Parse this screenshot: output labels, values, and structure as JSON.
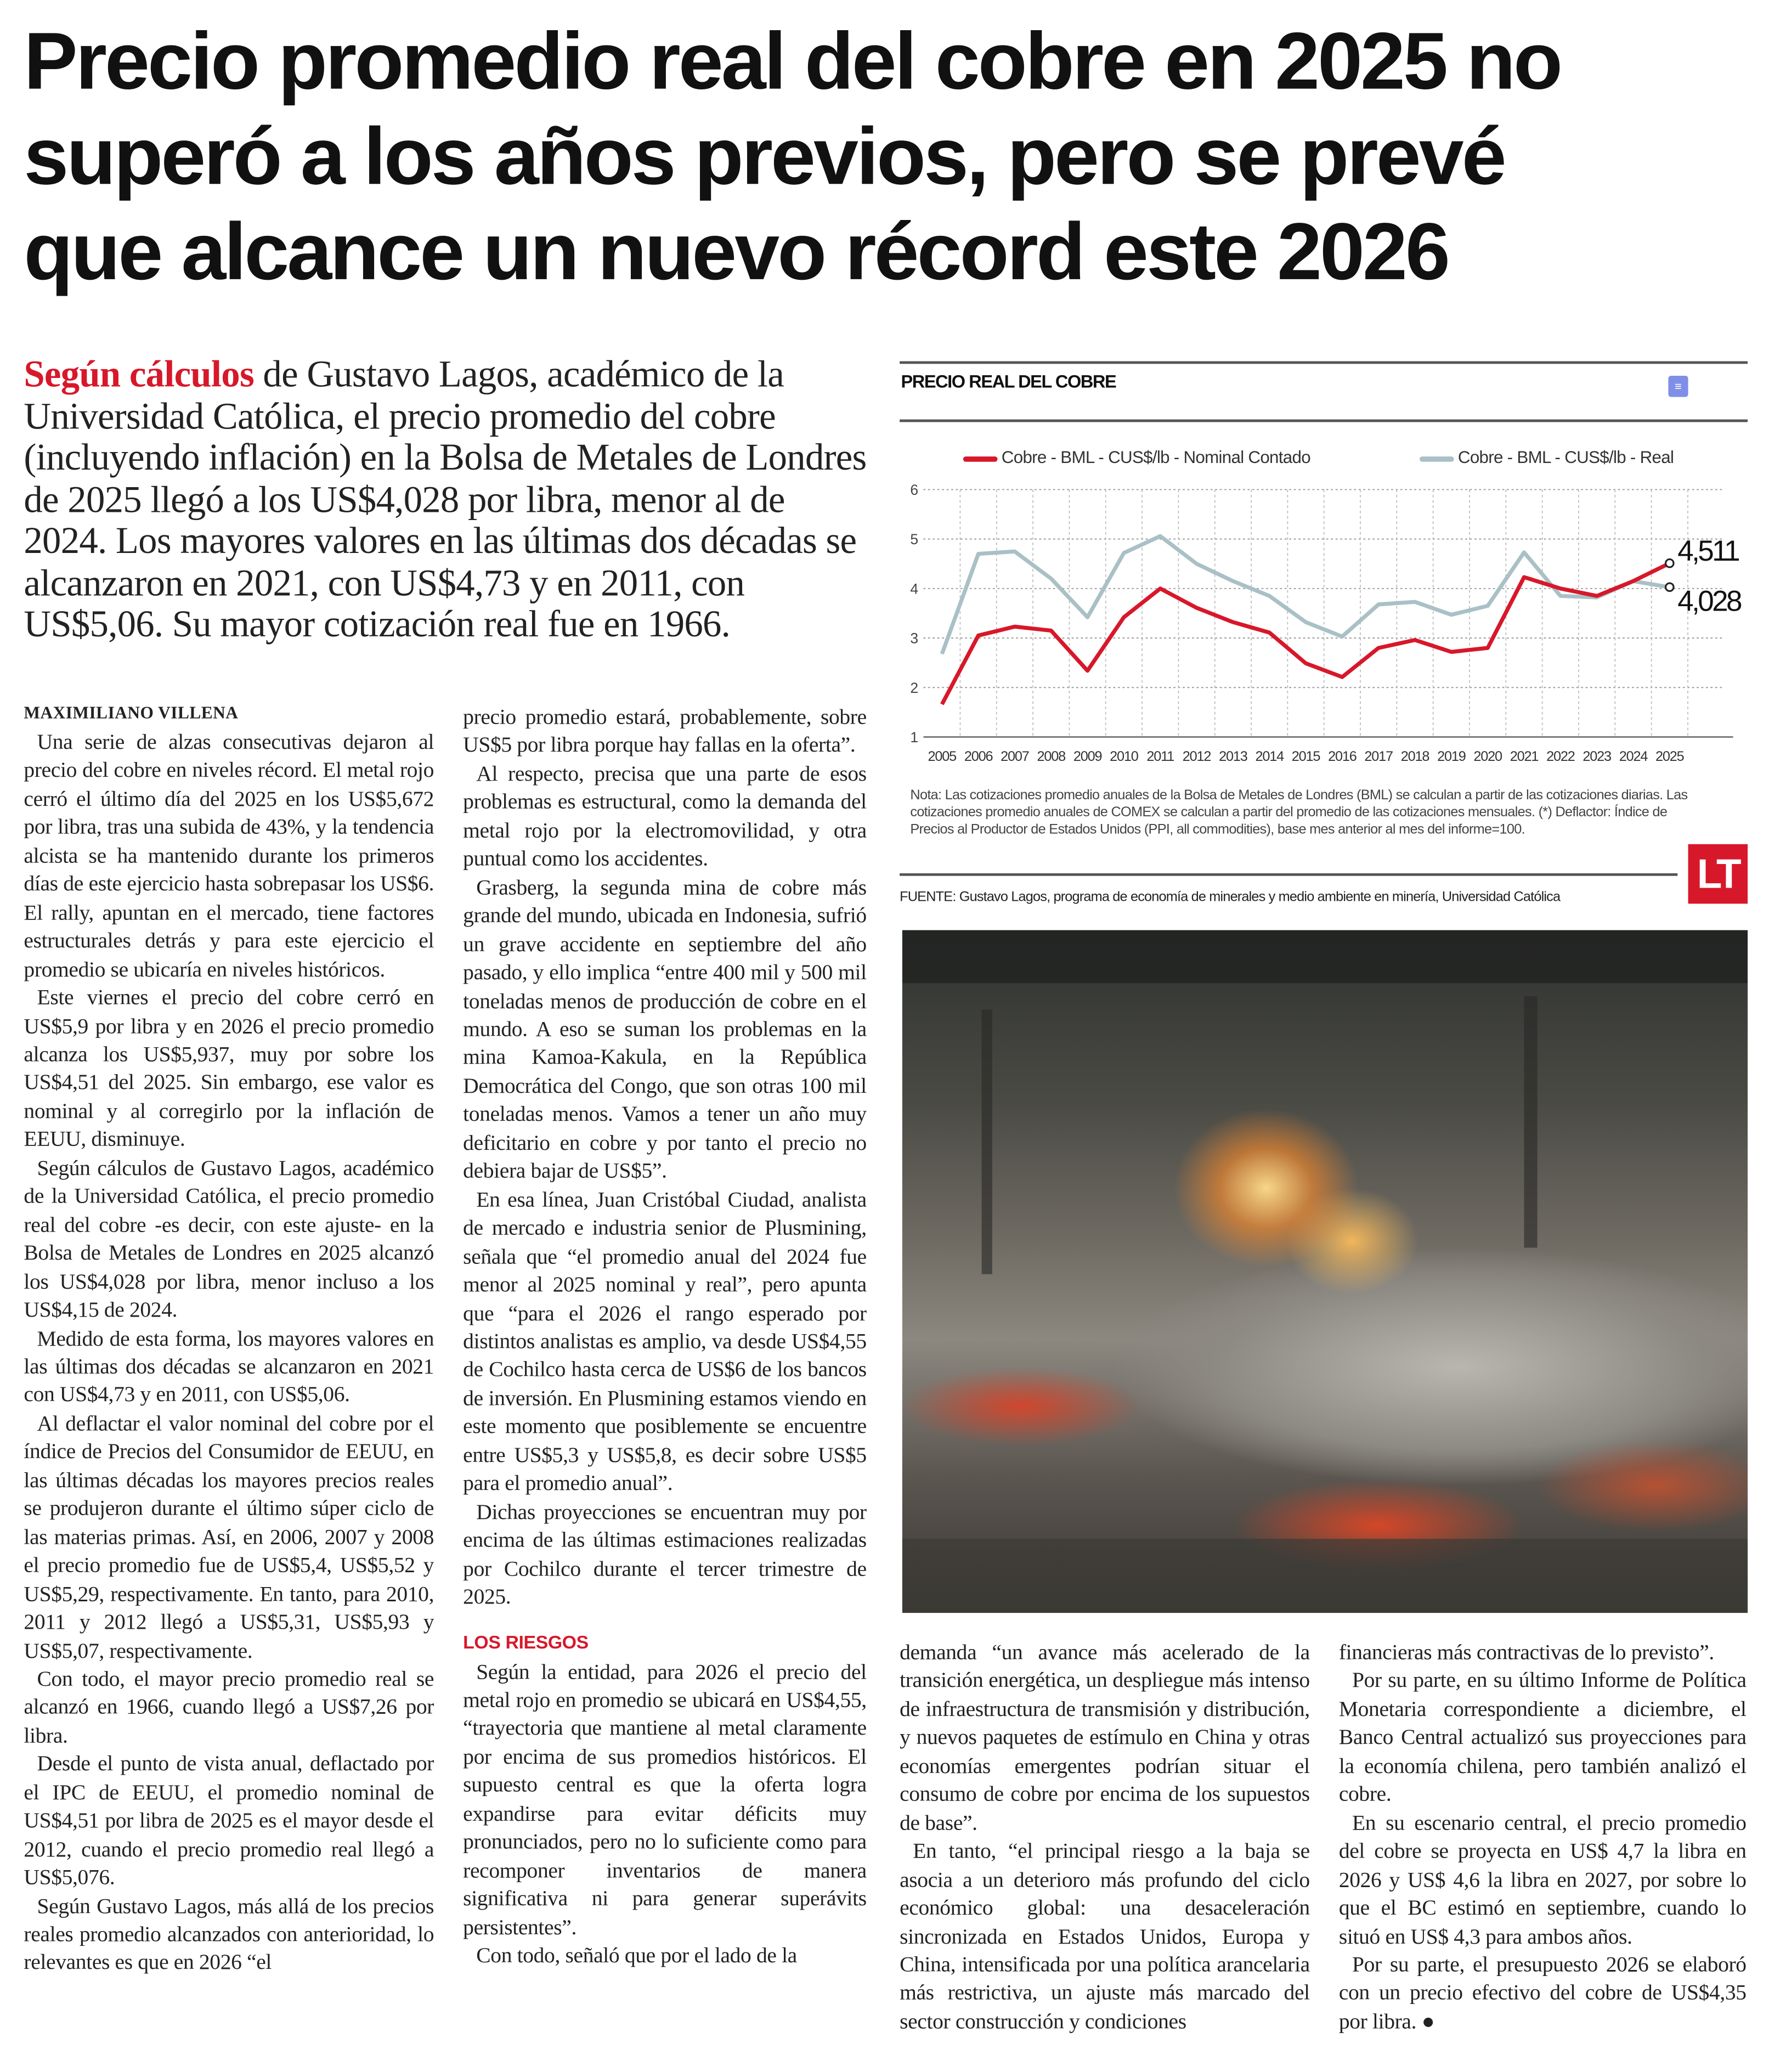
{
  "headline": {
    "lines": [
      "Precio promedio real del cobre en 2025 no",
      "superó a los años previos, pero se prevé",
      "que alcance un nuevo récord este 2026"
    ]
  },
  "lead": {
    "highlight": "Según cálculos",
    "text": " de Gustavo Lagos, académico de la Universidad Católica, el precio promedio del cobre (incluyendo inflación) en la Bolsa de Metales de Londres de 2025 llegó a los US$4,028 por libra, menor al de 2024. Los mayores valores en las últimas dos décadas se alcanzaron en 2021, con US$4,73 y en 2011, con US$5,06. Su mayor cotización real fue en 1966."
  },
  "col1": {
    "byline": "MAXIMILIANO VILLENA",
    "paragraphs": [
      "Una serie de alzas consecutivas dejaron al precio del cobre en niveles récord. El metal rojo cerró el último día del 2025 en los US$5,672 por libra, tras una subida de 43%, y la tendencia alcista se ha mantenido durante los primeros días de este ejercicio hasta sobrepasar los US$6. El rally, apuntan en el mercado, tiene factores estructurales detrás y para este ejercicio el promedio se ubicaría en niveles históricos.",
      "Este viernes el precio del cobre cerró en US$5,9 por libra y en 2026 el precio promedio alcanza los US$5,937, muy por sobre los US$4,51 del 2025. Sin embargo, ese valor es nominal y al corregirlo por la inflación de EEUU, disminuye.",
      "Según cálculos de Gustavo Lagos, académico de la Universidad Católica, el precio promedio real del cobre -es decir, con este ajuste- en la Bolsa de Metales de Londres en 2025 alcanzó los US$4,028 por libra, menor incluso a los US$4,15 de 2024.",
      "Medido de esta forma, los mayores valores en las últimas dos décadas se alcanzaron en 2021 con US$4,73 y en 2011, con US$5,06.",
      "Al deflactar el valor nominal del cobre por el índice de Precios del Consumidor de EEUU, en las últimas décadas los mayores precios reales se produjeron durante el último súper ciclo de las materias primas. Así, en 2006, 2007 y 2008 el precio promedio fue de US$5,4, US$5,52 y US$5,29, respectivamente. En tanto, para 2010, 2011 y 2012 llegó a US$5,31, US$5,93 y US$5,07, respectivamente.",
      "Con todo, el mayor precio promedio real se alcanzó en 1966, cuando llegó a US$7,26 por libra.",
      "Desde el punto de vista anual, deflactado por el IPC de EEUU, el promedio nominal de US$4,51 por libra de 2025 es el mayor desde el 2012, cuando el precio promedio real llegó a US$5,076.",
      "Según Gustavo Lagos, más allá de los precios reales promedio alcanzados con anterioridad, lo relevantes es que en 2026 “el"
    ]
  },
  "col2": {
    "paragraphs": [
      "precio promedio estará, probablemente, sobre US$5 por libra porque hay fallas en la oferta”.",
      "Al respecto, precisa que una parte de esos problemas es estructural, como la demanda del metal rojo por la electromovilidad, y otra puntual como los accidentes.",
      "Grasberg, la segunda mina de cobre más grande del mundo, ubicada en Indonesia, sufrió un grave accidente en septiembre del año pasado, y ello implica “entre 400 mil y 500 mil toneladas menos de producción de cobre en el mundo. A eso se suman los problemas en la mina Kamoa-Kakula, en la República Democrática del Congo, que son otras 100 mil toneladas menos. Vamos a tener un año muy deficitario en cobre y por tanto el precio no debiera bajar de US$5”.",
      "En esa línea, Juan Cristóbal Ciudad, analista de mercado e industria senior de Plusmining, señala que “el promedio anual del 2024 fue menor al 2025 nominal y real”, pero apunta que “para el 2026 el rango esperado por distintos analistas es amplio, va desde US$4,55 de Cochilco hasta cerca de US$6 de los bancos de inversión. En Plusmining estamos viendo en este momento que posiblemente se encuentre entre US$5,3 y US$5,8, es decir sobre US$5 para el promedio anual”.",
      "Dichas proyecciones se encuentran muy por encima de las últimas estimaciones realizadas por Cochilco durante el tercer trimestre de 2025."
    ],
    "subhead": "LOS RIESGOS",
    "paragraphs2": [
      "Según la entidad, para 2026 el precio del metal rojo en promedio se ubicará en US$4,55, “trayectoria que mantiene al metal claramente por encima de sus promedios históricos. El supuesto central es que la oferta logra expandirse para evitar déficits muy pronunciados, pero no lo suficiente como para recomponer inventarios de manera significativa ni para generar superávits persistentes”.",
      "Con todo, señaló que por el lado de la"
    ]
  },
  "col3": {
    "paragraphs": [
      "demanda “un avance más acelerado de la transición energética, un despliegue más intenso de infraestructura de transmisión y distribución, y nuevos paquetes de estímulo en China y otras economías emergentes podrían situar el consumo de cobre por encima de los supuestos de base”.",
      "En tanto, “el principal riesgo a la baja se asocia a un deterioro más profundo del ciclo económico global: una desaceleración sincronizada en Estados Unidos, Europa y China, intensificada por una política arancelaria más restrictiva, un ajuste más marcado del sector construcción y condiciones"
    ]
  },
  "col4": {
    "paragraphs": [
      "financieras más contractivas de lo previsto”.",
      "Por su parte, en su último Informe de Política Monetaria correspondiente a diciembre, el Banco Central actualizó sus proyecciones para la economía chilena, pero también analizó el cobre.",
      "En su escenario central, el precio promedio del cobre se proyecta en US$ 4,7 la libra en 2026 y US$ 4,6 la libra en 2027, por sobre lo que el BC estimó en septiembre, cuando lo situó en US$ 4,3 para ambos años.",
      "Por su parte, el presupuesto 2026 se elaboró con un precio efectivo del cobre de US$4,35 por libra."
    ],
    "end_mark": "●"
  },
  "chart_meta": {
    "note": "Nota: Las cotizaciones promedio anuales de la Bolsa de Metales de Londres (BML) se calculan a partir de las cotizaciones diarias. Las cotizaciones promedio anuales de COMEX se calculan a partir del promedio de las cotizaciones mensuales. (*) Deflactor: Índice de Precios al Productor de Estados Unidos (PPI, all commodities), base mes anterior al mes del informe=100.",
    "source": "FUENTE: Gustavo Lagos, programa de economía de minerales y medio ambiente en minería, Universidad Católica",
    "logo_text": "LT",
    "menu_icon": "menu-lines-icon"
  },
  "chart_data": {
    "type": "line",
    "title": "PRECIO REAL DEL COBRE",
    "x": [
      2005,
      2006,
      2007,
      2008,
      2009,
      2010,
      2011,
      2012,
      2013,
      2014,
      2015,
      2016,
      2017,
      2018,
      2019,
      2020,
      2021,
      2022,
      2023,
      2024,
      2025
    ],
    "ylim": [
      1,
      6
    ],
    "yticks": [
      1,
      2,
      3,
      4,
      5,
      6
    ],
    "grid": true,
    "legend": "top",
    "series": [
      {
        "name": "Cobre - BML - CUS$/lb - Nominal Contado",
        "color": "#d7182a",
        "values": [
          1.66,
          3.05,
          3.23,
          3.15,
          2.34,
          3.42,
          4.0,
          3.61,
          3.32,
          3.11,
          2.49,
          2.21,
          2.8,
          2.96,
          2.72,
          2.8,
          4.23,
          4.0,
          3.85,
          4.15,
          4.511
        ],
        "end_label": "4,511"
      },
      {
        "name": "Cobre - BML - CUS$/lb - Real",
        "color": "#a9c0c6",
        "values": [
          2.68,
          4.7,
          4.75,
          4.2,
          3.42,
          4.72,
          5.06,
          4.5,
          4.15,
          3.85,
          3.32,
          3.03,
          3.68,
          3.73,
          3.47,
          3.65,
          4.73,
          3.85,
          3.82,
          4.15,
          4.028
        ],
        "end_label": "4,028"
      }
    ]
  }
}
